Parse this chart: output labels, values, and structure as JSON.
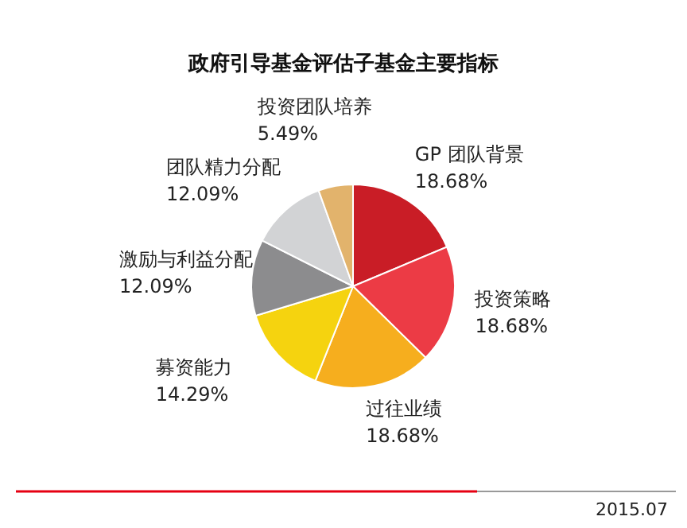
{
  "chart_data": {
    "type": "pie",
    "title": "政府引导基金评估子基金主要指标",
    "categories": [
      "GP 团队背景",
      "投资策略",
      "过往业绩",
      "募资能力",
      "激励与利益分配",
      "团队精力分配",
      "投资团队培养"
    ],
    "values": [
      18.68,
      18.68,
      18.68,
      14.29,
      12.09,
      12.09,
      5.49
    ],
    "colors": [
      "#c91d26",
      "#ec3b45",
      "#f6ae1e",
      "#f5d30f",
      "#8c8c8e",
      "#d2d3d5",
      "#e2b36c"
    ],
    "value_labels": [
      "18.68%",
      "18.68%",
      "18.68%",
      "14.29%",
      "12.09%",
      "12.09%",
      "5.49%"
    ],
    "annotations": [
      "2015.07"
    ]
  }
}
